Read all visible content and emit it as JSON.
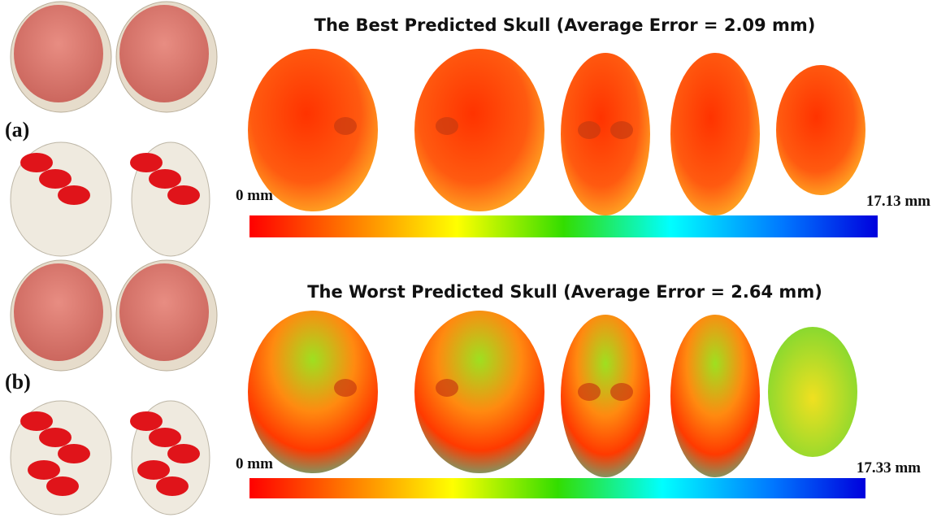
{
  "panels": [
    {
      "label": "(a)",
      "title": "The Best Predicted Skull (Average Error = 2.09 mm)",
      "scale_min": "0 mm",
      "scale_max": "17.13 mm"
    },
    {
      "label": "(b)",
      "title": "The Worst Predicted Skull (Average Error = 2.64 mm)",
      "scale_min": "0 mm",
      "scale_max": "17.33 mm"
    }
  ]
}
